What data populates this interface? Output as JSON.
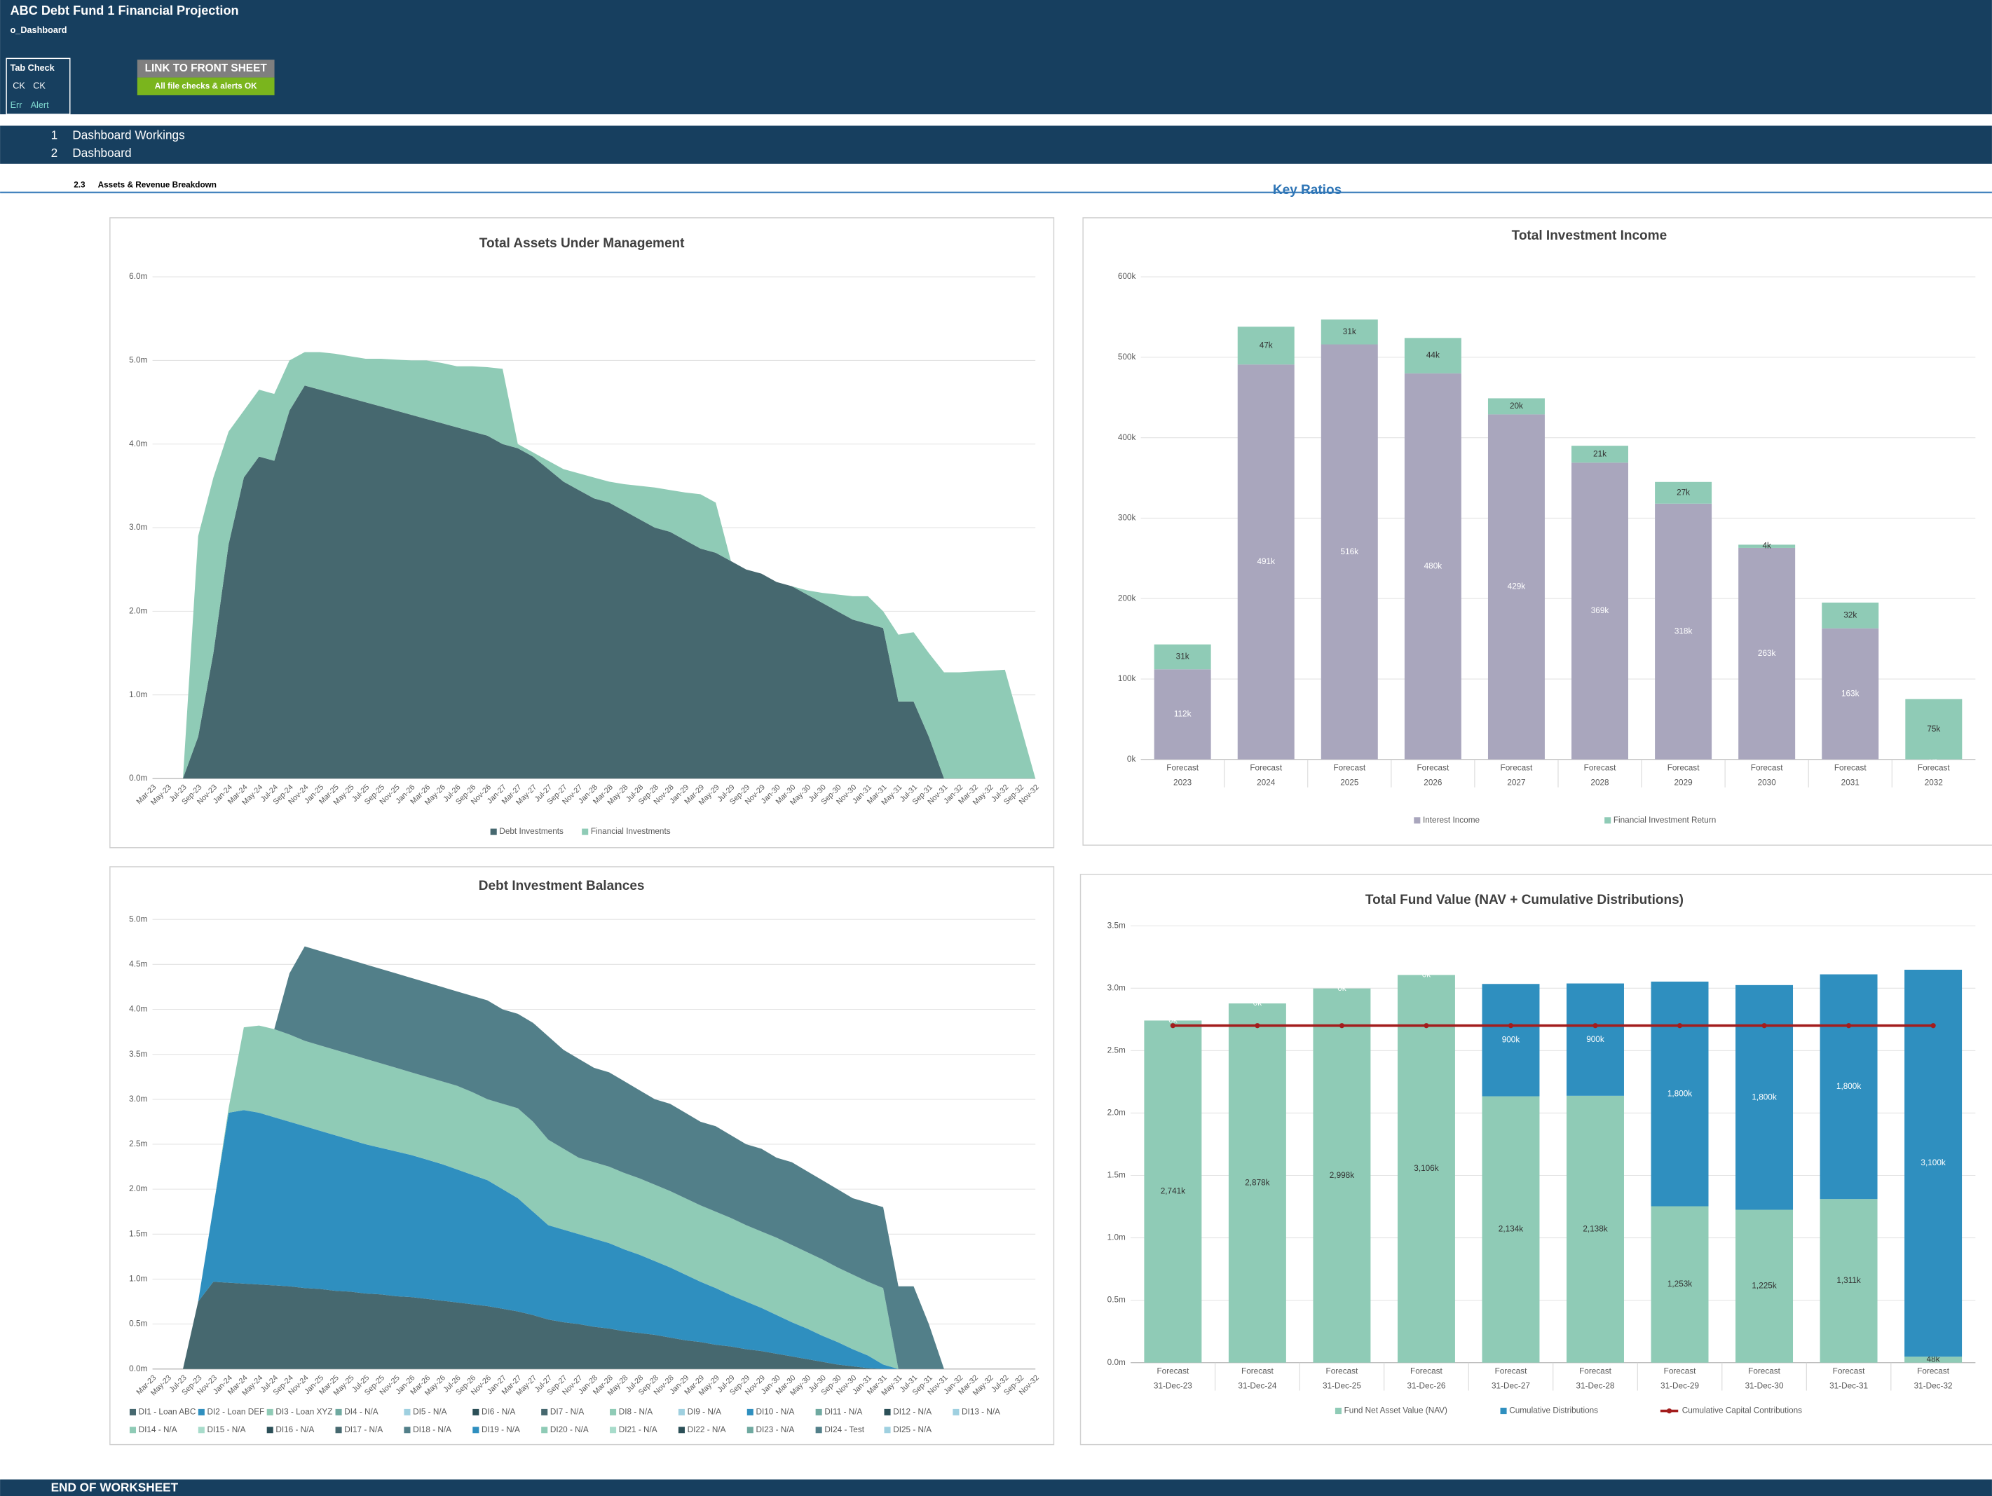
{
  "header": {
    "title": "ABC Debt Fund 1 Financial Projection",
    "sheet": "o_Dashboard",
    "tab_check": {
      "label": "Tab Check",
      "row1": [
        "CK",
        "CK"
      ],
      "row2": [
        "Err",
        "Alert"
      ]
    },
    "link_button": "LINK TO FRONT SHEET",
    "status": "All file checks & alerts OK"
  },
  "sections": [
    {
      "number": "1",
      "label": "Dashboard Workings"
    },
    {
      "number": "2",
      "label": "Dashboard"
    }
  ],
  "subsection": {
    "number": "2.3",
    "label": "Assets & Revenue Breakdown"
  },
  "key_ratios_label": "Key Ratios",
  "footer": "END OF WORKSHEET",
  "chart_data": [
    {
      "type": "area",
      "stacked": true,
      "title": "Total Assets Under Management",
      "grid": true,
      "categories": [
        "Mar-23",
        "May-23",
        "Jul-23",
        "Sep-23",
        "Nov-23",
        "Jan-24",
        "Mar-24",
        "May-24",
        "Jul-24",
        "Sep-24",
        "Nov-24",
        "Jan-25",
        "Mar-25",
        "May-25",
        "Jul-25",
        "Sep-25",
        "Nov-25",
        "Jan-26",
        "Mar-26",
        "May-26",
        "Jul-26",
        "Sep-26",
        "Nov-26",
        "Jan-27",
        "Mar-27",
        "May-27",
        "Jul-27",
        "Sep-27",
        "Nov-27",
        "Jan-28",
        "Mar-28",
        "May-28",
        "Jul-28",
        "Sep-28",
        "Nov-28",
        "Jan-29",
        "Mar-29",
        "May-29",
        "Jul-29",
        "Sep-29",
        "Nov-29",
        "Jan-30",
        "Mar-30",
        "May-30",
        "Jul-30",
        "Sep-30",
        "Nov-30",
        "Jan-31",
        "Mar-31",
        "May-31",
        "Jul-31",
        "Sep-31",
        "Nov-31",
        "Jan-32",
        "Mar-32",
        "May-32",
        "Jul-32",
        "Sep-32",
        "Nov-32"
      ],
      "series": [
        {
          "name": "Debt Investments",
          "color": "#46686f",
          "values": [
            0,
            0,
            0,
            0.5,
            1.5,
            2.8,
            3.6,
            3.85,
            3.8,
            4.4,
            4.7,
            4.65,
            4.6,
            4.55,
            4.5,
            4.45,
            4.4,
            4.35,
            4.3,
            4.25,
            4.2,
            4.15,
            4.1,
            4.0,
            3.95,
            3.85,
            3.7,
            3.55,
            3.45,
            3.35,
            3.3,
            3.2,
            3.1,
            3.0,
            2.95,
            2.85,
            2.75,
            2.7,
            2.6,
            2.5,
            2.45,
            2.35,
            2.3,
            2.2,
            2.1,
            2.0,
            1.9,
            1.85,
            1.8,
            0.92,
            0.92,
            0.5,
            0,
            0,
            0,
            0,
            0,
            0,
            0
          ]
        },
        {
          "name": "Financial Investments",
          "color": "#8fcbb6",
          "values": [
            0,
            0,
            0,
            2.4,
            2.1,
            1.35,
            0.8,
            0.8,
            0.8,
            0.6,
            0.4,
            0.45,
            0.48,
            0.5,
            0.52,
            0.57,
            0.61,
            0.65,
            0.7,
            0.72,
            0.73,
            0.78,
            0.82,
            0.9,
            0.05,
            0.05,
            0.1,
            0.15,
            0.2,
            0.25,
            0.25,
            0.32,
            0.4,
            0.48,
            0.5,
            0.57,
            0.65,
            0.6,
            0,
            0,
            0,
            0,
            0,
            0.05,
            0.12,
            0.2,
            0.28,
            0.33,
            0.2,
            0.8,
            0.83,
            1.0,
            1.27,
            1.27,
            1.28,
            1.29,
            1.3,
            0.65,
            0
          ]
        }
      ],
      "ylim": [
        0,
        6
      ],
      "yticks": [
        {
          "value": 0,
          "label": "0.0m"
        },
        {
          "value": 1,
          "label": "1.0m"
        },
        {
          "value": 2,
          "label": "2.0m"
        },
        {
          "value": 3,
          "label": "3.0m"
        },
        {
          "value": 4,
          "label": "4.0m"
        },
        {
          "value": 5,
          "label": "5.0m"
        },
        {
          "value": 6,
          "label": "6.0m"
        }
      ]
    },
    {
      "type": "bar",
      "stacked": true,
      "title": "Total Investment Income",
      "grid": true,
      "categories": [
        [
          "Forecast",
          "2023"
        ],
        [
          "Forecast",
          "2024"
        ],
        [
          "Forecast",
          "2025"
        ],
        [
          "Forecast",
          "2026"
        ],
        [
          "Forecast",
          "2027"
        ],
        [
          "Forecast",
          "2028"
        ],
        [
          "Forecast",
          "2029"
        ],
        [
          "Forecast",
          "2030"
        ],
        [
          "Forecast",
          "2031"
        ],
        [
          "Forecast",
          "2032"
        ]
      ],
      "series": [
        {
          "name": "Interest Income",
          "color": "#a9a6bd",
          "label_color": "#ffffff",
          "values": [
            112,
            491,
            516,
            480,
            429,
            369,
            318,
            263,
            163,
            0
          ],
          "value_labels": [
            "112k",
            "491k",
            "516k",
            "480k",
            "429k",
            "369k",
            "318k",
            "263k",
            "163k",
            "0k"
          ]
        },
        {
          "name": "Financial Investment Return",
          "color": "#8fcbb6",
          "label_color": "#333333",
          "values": [
            31,
            47,
            31,
            44,
            20,
            21,
            27,
            4,
            32,
            75
          ],
          "value_labels": [
            "31k",
            "47k",
            "31k",
            "44k",
            "20k",
            "21k",
            "27k",
            "4k",
            "32k",
            "75k"
          ]
        }
      ],
      "ylim": [
        0,
        600
      ],
      "yticks": [
        {
          "value": 0,
          "label": "0k"
        },
        {
          "value": 100,
          "label": "100k"
        },
        {
          "value": 200,
          "label": "200k"
        },
        {
          "value": 300,
          "label": "300k"
        },
        {
          "value": 400,
          "label": "400k"
        },
        {
          "value": 500,
          "label": "500k"
        },
        {
          "value": 600,
          "label": "600k"
        }
      ]
    },
    {
      "type": "area",
      "stacked": true,
      "title": "Debt Investment Balances",
      "grid": true,
      "categories": [
        "Mar-23",
        "May-23",
        "Jul-23",
        "Sep-23",
        "Nov-23",
        "Jan-24",
        "Mar-24",
        "May-24",
        "Jul-24",
        "Sep-24",
        "Nov-24",
        "Jan-25",
        "Mar-25",
        "May-25",
        "Jul-25",
        "Sep-25",
        "Nov-25",
        "Jan-26",
        "Mar-26",
        "May-26",
        "Jul-26",
        "Sep-26",
        "Nov-26",
        "Jan-27",
        "Mar-27",
        "May-27",
        "Jul-27",
        "Sep-27",
        "Nov-27",
        "Jan-28",
        "Mar-28",
        "May-28",
        "Jul-28",
        "Sep-28",
        "Nov-28",
        "Jan-29",
        "Mar-29",
        "May-29",
        "Jul-29",
        "Sep-29",
        "Nov-29",
        "Jan-30",
        "Mar-30",
        "May-30",
        "Jul-30",
        "Sep-30",
        "Nov-30",
        "Jan-31",
        "Mar-31",
        "May-31",
        "Jul-31",
        "Sep-31",
        "Nov-31",
        "Jan-32",
        "Mar-32",
        "May-32",
        "Jul-32",
        "Sep-32",
        "Nov-32"
      ],
      "series": [
        {
          "name": "DI1 - Loan ABC",
          "color": "#46686f",
          "values": [
            0,
            0,
            0,
            0.75,
            0.97,
            0.96,
            0.95,
            0.94,
            0.93,
            0.92,
            0.9,
            0.89,
            0.87,
            0.86,
            0.84,
            0.83,
            0.81,
            0.8,
            0.78,
            0.76,
            0.74,
            0.72,
            0.7,
            0.67,
            0.64,
            0.6,
            0.55,
            0.52,
            0.5,
            0.47,
            0.45,
            0.42,
            0.4,
            0.38,
            0.35,
            0.32,
            0.3,
            0.27,
            0.25,
            0.22,
            0.2,
            0.17,
            0.14,
            0.11,
            0.08,
            0.05,
            0.03,
            0.01,
            0,
            0,
            0,
            0,
            0,
            0,
            0,
            0,
            0,
            0,
            0
          ]
        },
        {
          "name": "DI2 - Loan DEF",
          "color": "#2f8fbf",
          "values": [
            0,
            0,
            0,
            0,
            0.83,
            1.89,
            1.93,
            1.91,
            1.87,
            1.83,
            1.8,
            1.76,
            1.73,
            1.69,
            1.66,
            1.63,
            1.61,
            1.58,
            1.55,
            1.52,
            1.48,
            1.44,
            1.4,
            1.33,
            1.26,
            1.15,
            1.05,
            1.03,
            1.0,
            0.98,
            0.95,
            0.91,
            0.87,
            0.82,
            0.78,
            0.73,
            0.67,
            0.63,
            0.57,
            0.53,
            0.48,
            0.43,
            0.38,
            0.34,
            0.29,
            0.25,
            0.19,
            0.14,
            0.05,
            0,
            0,
            0,
            0,
            0,
            0,
            0,
            0,
            0,
            0
          ]
        },
        {
          "name": "DI3 - Loan XYZ",
          "color": "#8fcbb6",
          "values": [
            0,
            0,
            0,
            0,
            0,
            0.05,
            0.92,
            0.97,
            0.98,
            0.97,
            0.95,
            0.95,
            0.95,
            0.95,
            0.95,
            0.94,
            0.93,
            0.92,
            0.92,
            0.92,
            0.93,
            0.92,
            0.9,
            0.95,
            1.0,
            1.0,
            0.95,
            0.9,
            0.85,
            0.85,
            0.85,
            0.85,
            0.85,
            0.85,
            0.85,
            0.85,
            0.85,
            0.85,
            0.86,
            0.85,
            0.85,
            0.86,
            0.86,
            0.85,
            0.85,
            0.83,
            0.83,
            0.82,
            0.85,
            0,
            0,
            0,
            0,
            0,
            0,
            0,
            0,
            0,
            0
          ]
        },
        {
          "name": "DI4 - N/A",
          "color": "#6fa9a0"
        },
        {
          "name": "DI5 - N/A",
          "color": "#9fd0e0"
        },
        {
          "name": "DI6 - N/A",
          "color": "#2b4f57"
        },
        {
          "name": "DI7 - N/A",
          "color": "#46686f"
        },
        {
          "name": "DI8 - N/A",
          "color": "#8fcbb6"
        },
        {
          "name": "DI9 - N/A",
          "color": "#9fd0e0"
        },
        {
          "name": "DI10 - N/A",
          "color": "#2f8fbf"
        },
        {
          "name": "DI11 - N/A",
          "color": "#6fa9a0"
        },
        {
          "name": "DI12 - N/A",
          "color": "#2b4f57"
        },
        {
          "name": "DI13 - N/A",
          "color": "#9fd0e0"
        },
        {
          "name": "DI14 - N/A",
          "color": "#8fcbb6"
        },
        {
          "name": "DI15 - N/A",
          "color": "#a8dccb"
        },
        {
          "name": "DI16 - N/A",
          "color": "#2b4f57"
        },
        {
          "name": "DI17 - N/A",
          "color": "#46686f"
        },
        {
          "name": "DI18 - N/A",
          "color": "#527f89"
        },
        {
          "name": "DI19 - N/A",
          "color": "#2f8fbf"
        },
        {
          "name": "DI20 - N/A",
          "color": "#8fcbb6"
        },
        {
          "name": "DI21 - N/A",
          "color": "#a8dccb"
        },
        {
          "name": "DI22 - N/A",
          "color": "#2b4f57"
        },
        {
          "name": "DI23 - N/A",
          "color": "#6fa9a0"
        },
        {
          "name": "DI24 - Test",
          "color": "#527f89",
          "values": [
            0,
            0,
            0,
            0,
            0,
            0,
            0,
            0,
            0,
            0.68,
            1.05,
            1.05,
            1.05,
            1.05,
            1.05,
            1.05,
            1.05,
            1.05,
            1.05,
            1.05,
            1.05,
            1.07,
            1.1,
            1.05,
            1.05,
            1.1,
            1.15,
            1.1,
            1.1,
            1.05,
            1.05,
            1.02,
            0.98,
            0.95,
            0.97,
            0.95,
            0.93,
            0.95,
            0.92,
            0.9,
            0.92,
            0.89,
            0.92,
            0.9,
            0.88,
            0.87,
            0.85,
            0.88,
            0.9,
            0.92,
            0.92,
            0.5,
            0,
            0,
            0,
            0,
            0,
            0,
            0
          ]
        },
        {
          "name": "DI25 - N/A",
          "color": "#9fd0e0"
        }
      ],
      "ylim": [
        0,
        5
      ],
      "yticks": [
        {
          "value": 0,
          "label": "0.0m"
        },
        {
          "value": 0.5,
          "label": "0.5m"
        },
        {
          "value": 1,
          "label": "1.0m"
        },
        {
          "value": 1.5,
          "label": "1.5m"
        },
        {
          "value": 2,
          "label": "2.0m"
        },
        {
          "value": 2.5,
          "label": "2.5m"
        },
        {
          "value": 3,
          "label": "3.0m"
        },
        {
          "value": 3.5,
          "label": "3.5m"
        },
        {
          "value": 4,
          "label": "4.0m"
        },
        {
          "value": 4.5,
          "label": "4.5m"
        },
        {
          "value": 5,
          "label": "5.0m"
        }
      ]
    },
    {
      "type": "bar",
      "stacked": true,
      "title": "Total Fund Value (NAV + Cumulative Distributions)",
      "grid": true,
      "categories": [
        [
          "Forecast",
          "31-Dec-23"
        ],
        [
          "Forecast",
          "31-Dec-24"
        ],
        [
          "Forecast",
          "31-Dec-25"
        ],
        [
          "Forecast",
          "31-Dec-26"
        ],
        [
          "Forecast",
          "31-Dec-27"
        ],
        [
          "Forecast",
          "31-Dec-28"
        ],
        [
          "Forecast",
          "31-Dec-29"
        ],
        [
          "Forecast",
          "31-Dec-30"
        ],
        [
          "Forecast",
          "31-Dec-31"
        ],
        [
          "Forecast",
          "31-Dec-32"
        ]
      ],
      "series": [
        {
          "name": "Fund Net Asset Value (NAV)",
          "color": "#8fcbb6",
          "label_color": "#333333",
          "values": [
            2.741,
            2.878,
            2.998,
            3.106,
            2.134,
            2.138,
            1.253,
            1.225,
            1.311,
            0.048
          ],
          "value_labels": [
            "2,741k",
            "2,878k",
            "2,998k",
            "3,106k",
            "2,134k",
            "2,138k",
            "1,253k",
            "1,225k",
            "1,311k",
            "48k"
          ]
        },
        {
          "name": "Cumulative Distributions",
          "color": "#2f8fbf",
          "label_color": "#ffffff",
          "values": [
            0,
            0,
            0,
            0,
            0.9,
            0.9,
            1.8,
            1.8,
            1.8,
            3.1
          ],
          "value_labels": [
            "0k",
            "0k",
            "0k",
            "0k",
            "900k",
            "900k",
            "1,800k",
            "1,800k",
            "1,800k",
            "3,100k"
          ]
        },
        {
          "name": "Cumulative Capital Contributions",
          "color": "#a31d1d",
          "type": "line",
          "values": [
            2.7,
            2.7,
            2.7,
            2.7,
            2.7,
            2.7,
            2.7,
            2.7,
            2.7,
            2.7
          ]
        }
      ],
      "ylim": [
        0,
        3.5
      ],
      "yticks": [
        {
          "value": 0,
          "label": "0.0m"
        },
        {
          "value": 0.5,
          "label": "0.5m"
        },
        {
          "value": 1,
          "label": "1.0m"
        },
        {
          "value": 1.5,
          "label": "1.5m"
        },
        {
          "value": 2,
          "label": "2.0m"
        },
        {
          "value": 2.5,
          "label": "2.5m"
        },
        {
          "value": 3,
          "label": "3.0m"
        },
        {
          "value": 3.5,
          "label": "3.5m"
        }
      ]
    }
  ]
}
